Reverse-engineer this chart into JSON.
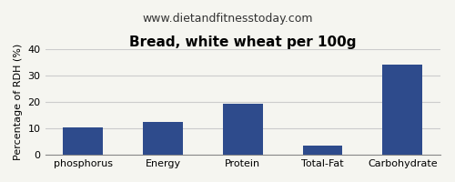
{
  "title": "Bread, white wheat per 100g",
  "subtitle": "www.dietandfitnesstoday.com",
  "categories": [
    "phosphorus",
    "Energy",
    "Protein",
    "Total-Fat",
    "Carbohydrate"
  ],
  "values": [
    10.3,
    12.3,
    19.3,
    3.5,
    34.0
  ],
  "bar_color": "#2e4b8c",
  "ylabel": "Percentage of RDH (%)",
  "ylim": [
    0,
    40
  ],
  "yticks": [
    0,
    10,
    20,
    30,
    40
  ],
  "background_color": "#f5f5f0",
  "grid_color": "#cccccc",
  "title_fontsize": 11,
  "subtitle_fontsize": 9,
  "tick_fontsize": 8,
  "ylabel_fontsize": 8
}
